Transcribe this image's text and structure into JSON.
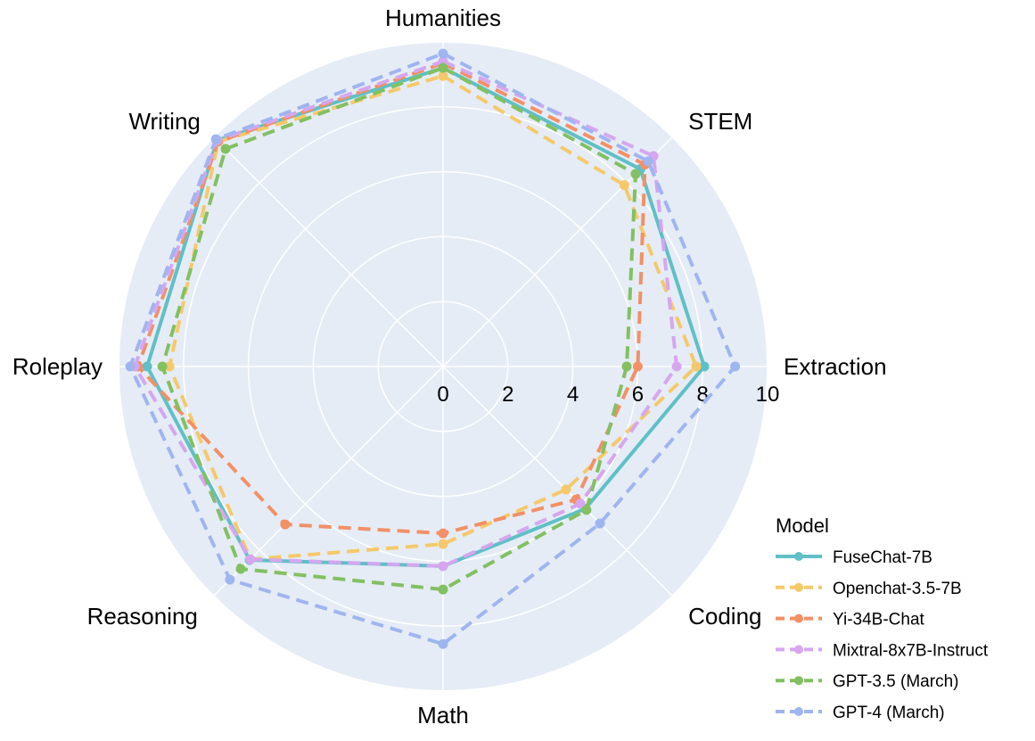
{
  "chart_data": {
    "type": "radar",
    "categories": [
      "Humanities",
      "STEM",
      "Extraction",
      "Coding",
      "Math",
      "Reasoning",
      "Roleplay",
      "Writing"
    ],
    "radial_range": [
      0,
      10
    ],
    "radial_ticks": [
      "0",
      "2",
      "4",
      "6",
      "8",
      "10"
    ],
    "grid": true,
    "legend": {
      "title": "Model",
      "placement": "bottom-right"
    },
    "series": [
      {
        "name": "FuseChat-7B",
        "color": "#5fc0c6",
        "dash": false,
        "values": [
          9.2,
          8.6,
          8.05,
          6.2,
          6.15,
          8.43,
          9.12,
          9.85
        ]
      },
      {
        "name": "Openchat-3.5-7B",
        "color": "#f5c96a",
        "dash": true,
        "values": [
          8.95,
          7.9,
          7.8,
          5.36,
          5.47,
          8.4,
          8.43,
          9.8
        ]
      },
      {
        "name": "Yi-34B-Chat",
        "color": "#f29066",
        "dash": true,
        "values": [
          9.34,
          8.8,
          6.0,
          5.8,
          5.14,
          6.88,
          9.4,
          9.8
        ]
      },
      {
        "name": "Mixtral-8x7B-Instruct",
        "color": "#d6a6ef",
        "dash": true,
        "values": [
          9.4,
          9.17,
          7.2,
          5.98,
          6.15,
          8.4,
          9.5,
          9.85
        ]
      },
      {
        "name": "GPT-3.5 (March)",
        "color": "#82c061",
        "dash": true,
        "values": [
          9.2,
          8.39,
          5.66,
          6.25,
          6.87,
          8.82,
          8.65,
          9.48
        ]
      },
      {
        "name": "GPT-4 (March)",
        "color": "#9fb5f0",
        "dash": true,
        "values": [
          9.64,
          8.94,
          9.0,
          6.84,
          8.55,
          9.29,
          9.64,
          9.9
        ]
      }
    ]
  }
}
